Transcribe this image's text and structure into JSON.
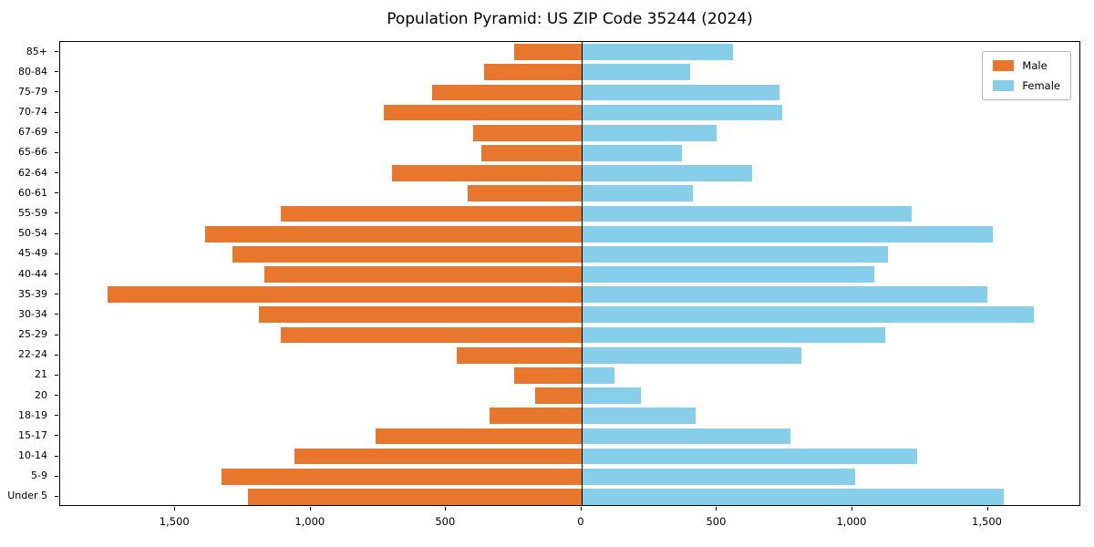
{
  "title": "Population Pyramid: US ZIP Code 35244 (2024)",
  "colors": {
    "male": "#e8762d",
    "female": "#87ceeb",
    "axis": "#000000",
    "background": "#ffffff"
  },
  "legend": {
    "male_label": "Male",
    "female_label": "Female",
    "position": "upper right"
  },
  "chart_data": {
    "type": "bar",
    "subtype": "population-pyramid",
    "orientation": "horizontal",
    "title": "Population Pyramid: US ZIP Code 35244 (2024)",
    "xlabel": "",
    "ylabel": "",
    "grid": false,
    "legend_position": "upper right",
    "categories_top_to_bottom": [
      "85+",
      "80-84",
      "75-79",
      "70-74",
      "67-69",
      "65-66",
      "62-64",
      "60-61",
      "55-59",
      "50-54",
      "45-49",
      "40-44",
      "35-39",
      "30-34",
      "25-29",
      "22-24",
      "21",
      "20",
      "18-19",
      "15-17",
      "10-14",
      "5-9",
      "Under 5"
    ],
    "series": [
      {
        "name": "Male",
        "side": "left",
        "color": "#e8762d",
        "values": [
          250,
          360,
          550,
          730,
          400,
          370,
          700,
          420,
          1110,
          1390,
          1290,
          1170,
          1750,
          1190,
          1110,
          460,
          250,
          170,
          340,
          760,
          1060,
          1330,
          1230
        ]
      },
      {
        "name": "Female",
        "side": "right",
        "color": "#87ceeb",
        "values": [
          560,
          400,
          730,
          740,
          500,
          370,
          630,
          410,
          1220,
          1520,
          1130,
          1080,
          1500,
          1670,
          1120,
          810,
          120,
          220,
          420,
          770,
          1240,
          1010,
          1560
        ]
      }
    ],
    "xlim": [
      -1925,
      1845
    ],
    "x_ticks": [
      -1500,
      -1000,
      -500,
      0,
      500,
      1000,
      1500
    ],
    "x_tick_labels": [
      "1,500",
      "1,000",
      "500",
      "0",
      "500",
      "1,000",
      "1,500"
    ],
    "zero_reference_line": true
  }
}
